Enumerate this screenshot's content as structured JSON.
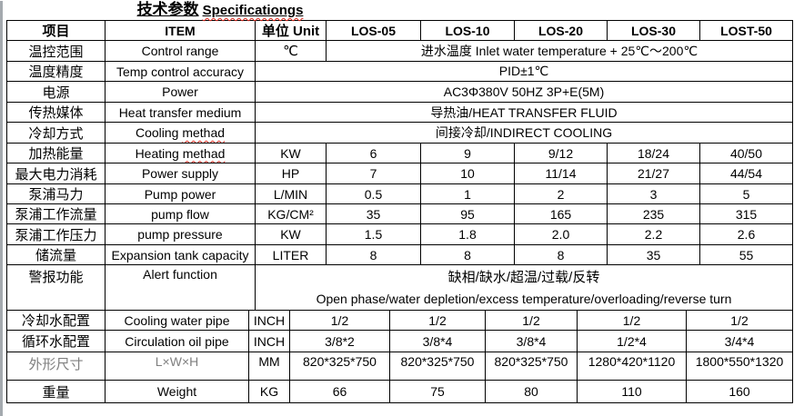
{
  "title": {
    "zh": "技术参数",
    "en_typo": "Specificationgs"
  },
  "colors": {
    "border": "#000000",
    "muted_text": "#7f7f7f",
    "spellcheck_squiggle": "#e02b20",
    "window_edge": "#a4a9ae"
  },
  "table": {
    "header": {
      "item_zh": "项目",
      "item_en": "ITEM",
      "unit": "单位 Unit",
      "models": [
        "LOS-05",
        "LOS-10",
        "LOS-20",
        "LOS-30",
        "LOST-50"
      ]
    },
    "rows_upper": [
      {
        "type": "unit_span",
        "zh": "温控范围",
        "en": "Control range",
        "unit": "℃",
        "span": "进水温度 Inlet water temperature + 25℃～200℃"
      },
      {
        "type": "span",
        "zh": "温度精度",
        "en": "Temp control accuracy",
        "span": "PID±1℃"
      },
      {
        "type": "span",
        "zh": "电源",
        "en": "Power",
        "span": "AC3Φ380V 50HZ 3P+E(5M)"
      },
      {
        "type": "span",
        "zh": "传热媒体",
        "en": "Heat transfer medium",
        "span": "导热油/HEAT TRANSFER FLUID"
      },
      {
        "type": "span",
        "zh": "冷却方式",
        "en": "Cooling ",
        "en_typo": "methad",
        "span": "间接冷却/INDIRECT COOLING"
      },
      {
        "type": "values",
        "zh": "加热能量",
        "en": "Heating ",
        "en_typo": "methad",
        "unit": "KW",
        "values": [
          "6",
          "9",
          "9/12",
          "18/24",
          "40/50"
        ]
      },
      {
        "type": "values",
        "zh": "最大电力消耗",
        "en": "Power supply",
        "unit": "HP",
        "values": [
          "7",
          "10",
          "11/14",
          "21/27",
          "44/54"
        ]
      },
      {
        "type": "values",
        "zh": "泵浦马力",
        "en": "Pump power",
        "unit": "L/MIN",
        "values": [
          "0.5",
          "1",
          "2",
          "3",
          "5"
        ]
      },
      {
        "type": "values",
        "zh": "泵浦工作流量",
        "en": "pump flow",
        "unit": "KG/CM²",
        "values": [
          "35",
          "95",
          "165",
          "235",
          "315"
        ]
      },
      {
        "type": "values",
        "zh": "泵浦工作压力",
        "en": "pump pressure",
        "unit": "KW",
        "values": [
          "1.5",
          "1.8",
          "2.0",
          "2.2",
          "2.6"
        ]
      },
      {
        "type": "values",
        "zh": "储流量",
        "en": "Expansion tank capacity",
        "unit": "LITER",
        "values": [
          "8",
          "8",
          "8",
          "35",
          "55"
        ]
      },
      {
        "type": "span2",
        "zh": "警报功能",
        "en": "Alert function",
        "span_line1": "缺相/缺水/超温/过载/反转",
        "span_line2": "Open phase/water depletion/excess temperature/overloading/reverse turn"
      }
    ],
    "rows_lower": [
      {
        "zh": "冷却水配置",
        "en": "Cooling water pipe",
        "unit": "INCH",
        "values": [
          "1/2",
          "1/2",
          "1/2",
          "1/2",
          "1/2"
        ]
      },
      {
        "zh": "循环水配置",
        "en": "Circulation oil pipe",
        "unit": "INCH",
        "values": [
          "3/8*2",
          "3/8*4",
          "3/8*4",
          "1/2*4",
          "3/4*4"
        ]
      },
      {
        "zh": "外形尺寸",
        "en": "L×W×H",
        "unit": "MM",
        "muted": true,
        "vtop": true,
        "values": [
          "820*325*750",
          "820*325*750",
          "820*325*750",
          "1280*420*1120",
          "1800*550*1320"
        ]
      },
      {
        "zh": "重量",
        "en": "Weight",
        "unit": "KG",
        "values": [
          "66",
          "75",
          "80",
          "110",
          "160"
        ]
      }
    ]
  }
}
